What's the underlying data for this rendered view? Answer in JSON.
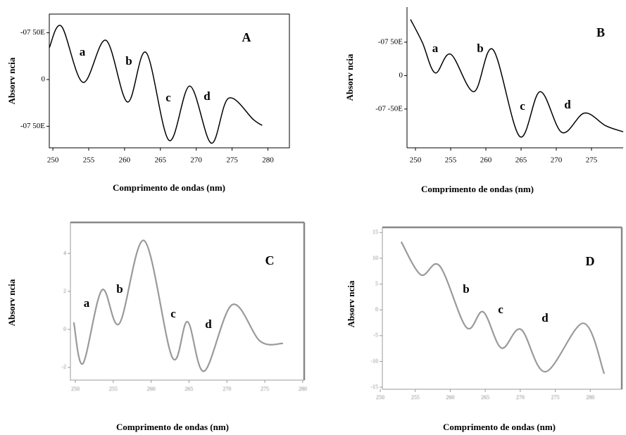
{
  "chart_data": [
    {
      "type": "line",
      "title": "A",
      "x_label": "Comprimento de ondas (nm)",
      "y_label": "Absorv ncia",
      "annotations": [
        "a",
        "b",
        "c",
        "d"
      ],
      "x": [
        249.5,
        251.2,
        254.2,
        257.4,
        260.4,
        263.0,
        266.2,
        269.1,
        272.1,
        274.5,
        278.0,
        279.2
      ],
      "series": [
        {
          "color": "#000000",
          "values": [
            3.4,
            5.7,
            -0.3,
            4.2,
            -2.4,
            2.9,
            -6.5,
            -0.7,
            -6.8,
            -2.0,
            -4.3,
            -4.9
          ]
        }
      ],
      "xlim": [
        249.5,
        283
      ],
      "ylim": [
        -7.3,
        7
      ],
      "xticks": [
        250,
        255,
        260,
        265,
        270,
        275,
        280
      ],
      "yticks": [
        {
          "value": 5,
          "label": "-07 50E"
        },
        0,
        {
          "value": -5,
          "label": "-07 50E"
        }
      ]
    },
    {
      "type": "line",
      "title": "B",
      "x_label": "Comprimento de ondas (nm)",
      "y_label": "Absorv ncia",
      "annotations": [
        "a",
        "b",
        "c",
        "d"
      ],
      "x": [
        249.3,
        251.0,
        252.8,
        255.0,
        258.3,
        261.0,
        264.8,
        267.7,
        270.8,
        274.0,
        277.0,
        279.5
      ],
      "series": [
        {
          "color": "#000000",
          "values": [
            8.4,
            4.9,
            0.4,
            3.2,
            -2.4,
            3.9,
            -9.1,
            -2.4,
            -8.5,
            -5.6,
            -7.5,
            -8.4
          ]
        }
      ],
      "xlim": [
        248.8,
        279.5
      ],
      "ylim": [
        -10.8,
        9.2
      ],
      "xticks": [
        250,
        255,
        260,
        265,
        270,
        275
      ],
      "yticks": [
        {
          "value": 5,
          "label": "-07 50E"
        },
        0,
        {
          "value": -5,
          "label": "-07 -50E"
        }
      ]
    },
    {
      "type": "line",
      "title": "C",
      "x_label": "Comprimento de ondas (nm)",
      "y_label": "Absorv ncia",
      "annotations": [
        "a",
        "b",
        "c",
        "d"
      ],
      "x": [
        249.8,
        251.0,
        253.5,
        255.8,
        259.1,
        262.8,
        264.8,
        267.0,
        270.7,
        274.4,
        277.4
      ],
      "series": [
        {
          "color": "#9a9a9a",
          "values": [
            0.37,
            -1.8,
            2.07,
            0.3,
            4.67,
            -1.48,
            0.4,
            -2.2,
            1.3,
            -0.63,
            -0.74
          ]
        }
      ],
      "xlim": [
        249.35,
        280.2
      ],
      "ylim": [
        -2.67,
        5.63
      ],
      "xticks": [
        250,
        255,
        260,
        265,
        270,
        275,
        280
      ],
      "yticks": [
        4,
        2,
        0,
        -2
      ]
    },
    {
      "type": "line",
      "title": "D",
      "x_label": "Comprimento de ondas (nm)",
      "y_label": "Absorv ncia",
      "annotations": [
        "b",
        "c",
        "d"
      ],
      "x": [
        253.0,
        255.8,
        258.5,
        262.3,
        264.7,
        267.3,
        270.1,
        273.6,
        279.0,
        282.0
      ],
      "series": [
        {
          "color": "#9a9a9a",
          "values": [
            13.2,
            6.8,
            8.5,
            -3.4,
            -0.4,
            -7.4,
            -3.8,
            -12,
            -2.6,
            -12.4
          ]
        }
      ],
      "xlim": [
        250.3,
        284.5
      ],
      "ylim": [
        -15.4,
        16
      ],
      "xticks": [
        250,
        255,
        260,
        265,
        270,
        275,
        280
      ],
      "yticks": [
        15,
        10,
        5,
        0,
        -5,
        -10,
        -15
      ]
    }
  ]
}
